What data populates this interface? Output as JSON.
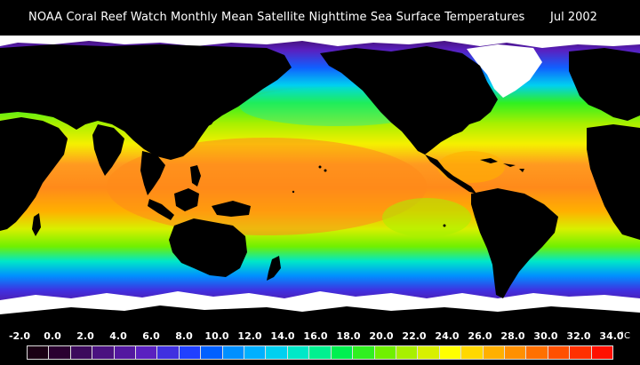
{
  "header": {
    "title": "NOAA Coral Reef Watch Monthly Mean Satellite Nighttime Sea Surface Temperatures",
    "date": "Jul 2002"
  },
  "legend": {
    "labels": [
      "-2.0",
      "0.0",
      "2.0",
      "4.0",
      "6.0",
      "8.0",
      "10.0",
      "12.0",
      "14.0",
      "16.0",
      "18.0",
      "20.0",
      "22.0",
      "24.0",
      "26.0",
      "28.0",
      "30.0",
      "32.0",
      "34.0"
    ],
    "unit": "°C",
    "colors": [
      "#1a0014",
      "#2a0030",
      "#3c0a5c",
      "#4a1280",
      "#5318a0",
      "#5a20c0",
      "#4030e0",
      "#2040ff",
      "#0060ff",
      "#0090ff",
      "#00b0ff",
      "#00d0f0",
      "#00e8c8",
      "#00f090",
      "#00f050",
      "#30f020",
      "#70f000",
      "#a8f000",
      "#d8f000",
      "#ffff00",
      "#ffd800",
      "#ffb000",
      "#ff9000",
      "#ff7000",
      "#ff5000",
      "#ff3000",
      "#ff1000"
    ]
  },
  "map": {
    "ocean_palette": {
      "warm": "#ff8a1a",
      "hot": "#ff6a10",
      "yellow": "#f5f000",
      "lime": "#a8f000",
      "green": "#30f020",
      "cyan": "#00d0f0",
      "blue": "#1060ff",
      "violet": "#5a20c0",
      "purple": "#3c0a5c",
      "land": "#000000",
      "ice": "#ffffff"
    }
  }
}
